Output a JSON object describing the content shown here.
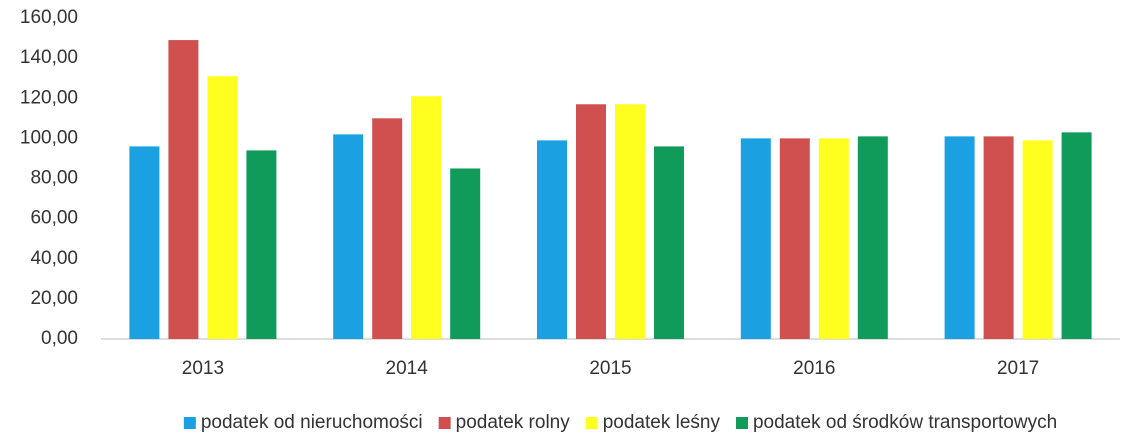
{
  "chart_data": {
    "type": "bar",
    "categories": [
      "2013",
      "2014",
      "2015",
      "2016",
      "2017"
    ],
    "series": [
      {
        "name": "podatek od nieruchomości",
        "color": "#1ba1e2",
        "values": [
          96,
          102,
          99,
          100,
          101
        ]
      },
      {
        "name": "podatek rolny",
        "color": "#d0504f",
        "values": [
          149,
          110,
          117,
          100,
          101
        ]
      },
      {
        "name": "podatek leśny",
        "color": "#ffff1f",
        "values": [
          131,
          121,
          117,
          100,
          99
        ]
      },
      {
        "name": "podatek od środków transportowych",
        "color": "#119b5b",
        "values": [
          94,
          85,
          96,
          101,
          103
        ]
      }
    ],
    "ylim": [
      0,
      160
    ],
    "yticks": [
      {
        "value": 0,
        "label": "0,00"
      },
      {
        "value": 20,
        "label": "20,00"
      },
      {
        "value": 40,
        "label": "40,00"
      },
      {
        "value": 60,
        "label": "60,00"
      },
      {
        "value": 80,
        "label": "80,00"
      },
      {
        "value": 100,
        "label": "100,00"
      },
      {
        "value": 120,
        "label": "120,00"
      },
      {
        "value": 140,
        "label": "140,00"
      },
      {
        "value": 160,
        "label": "160,00"
      }
    ],
    "grid": false,
    "legend": "bottom"
  }
}
